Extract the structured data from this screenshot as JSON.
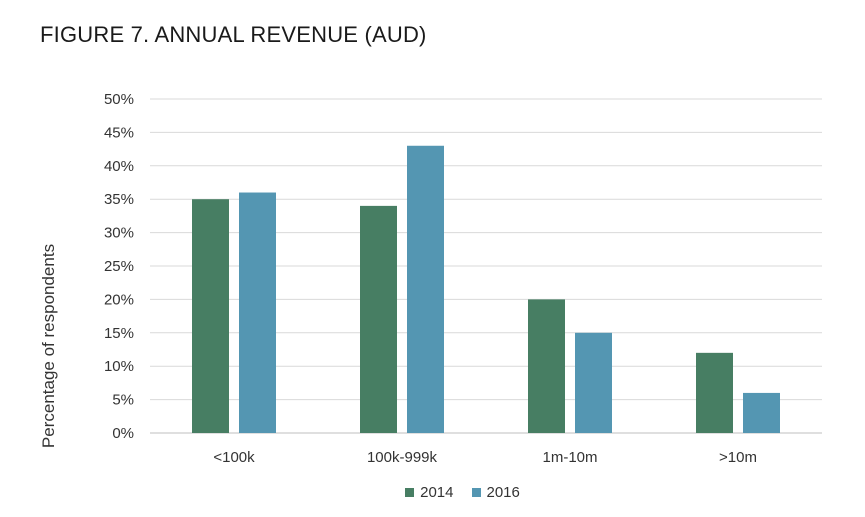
{
  "figure": {
    "title": "FIGURE 7.  ANNUAL REVENUE (AUD)"
  },
  "chart_data": {
    "type": "bar",
    "title": "FIGURE 7.  ANNUAL REVENUE (AUD)",
    "xlabel": "",
    "ylabel": "Percentage of respondents",
    "categories": [
      "<100k",
      "100k-999k",
      "1m-10m",
      ">10m"
    ],
    "series": [
      {
        "name": "2014",
        "values": [
          35,
          34,
          20,
          12
        ],
        "color": "#477e63"
      },
      {
        "name": "2016",
        "values": [
          36,
          43,
          15,
          6
        ],
        "color": "#5496b2"
      }
    ],
    "ylim": [
      0,
      50
    ],
    "yticks": [
      0,
      5,
      10,
      15,
      20,
      25,
      30,
      35,
      40,
      45,
      50
    ],
    "ytick_labels": [
      "0%",
      "5%",
      "10%",
      "15%",
      "20%",
      "25%",
      "30%",
      "35%",
      "40%",
      "45%",
      "50%"
    ],
    "grid": true,
    "grid_color": "#d9d9d9",
    "legend_position": "bottom"
  }
}
